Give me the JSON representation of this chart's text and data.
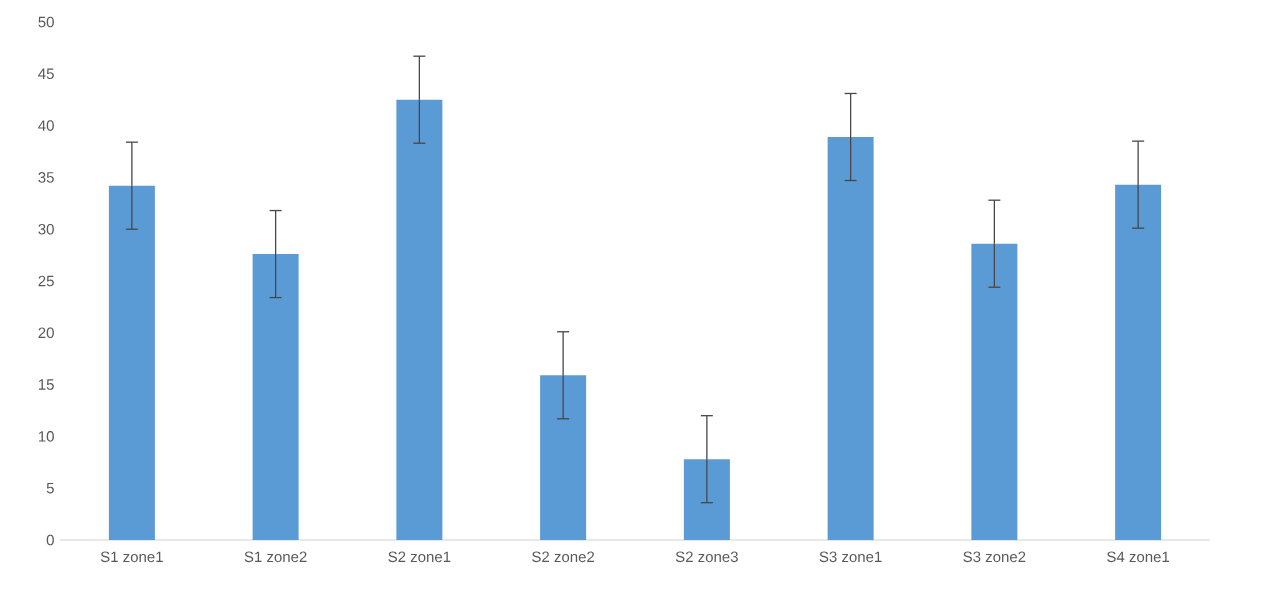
{
  "chart_data": {
    "type": "bar",
    "categories": [
      "S1 zone1",
      "S1 zone2",
      "S2 zone1",
      "S2 zone2",
      "S2 zone3",
      "S3 zone1",
      "S3 zone2",
      "S4 zone1"
    ],
    "values": [
      34.2,
      27.6,
      42.5,
      15.9,
      7.8,
      38.9,
      28.6,
      34.3
    ],
    "errors": [
      4.2,
      4.2,
      4.2,
      4.2,
      4.2,
      4.2,
      4.2,
      4.2
    ],
    "color": "#5b9bd5",
    "ylim": [
      0,
      50
    ],
    "yticks": [
      0,
      5,
      10,
      15,
      20,
      25,
      30,
      35,
      40,
      45,
      50
    ]
  }
}
